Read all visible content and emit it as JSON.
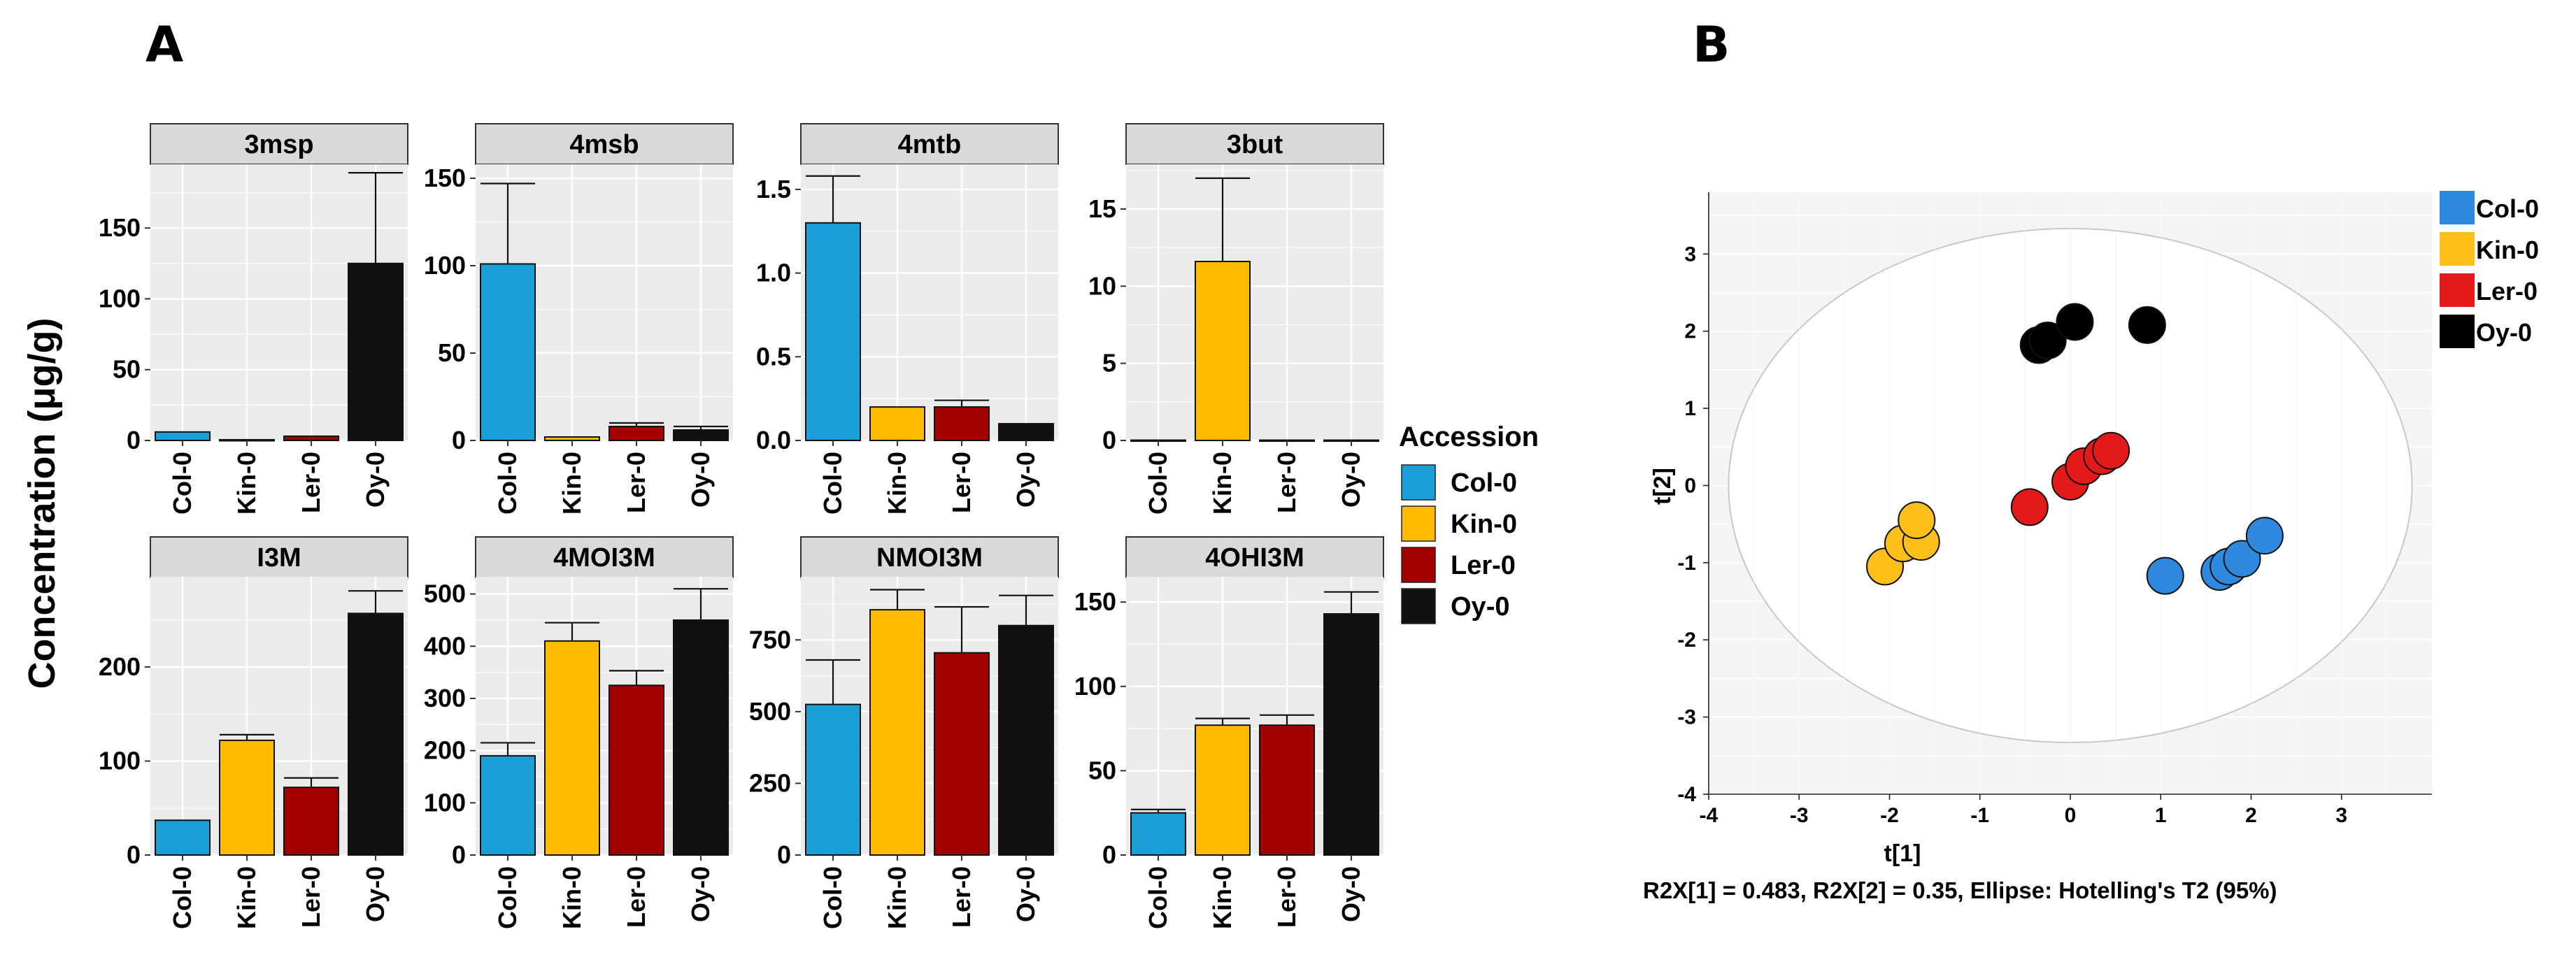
{
  "panel_a_label": "A",
  "panel_b_label": "B",
  "colors": {
    "Col-0": "#1a9fd6",
    "Kin-0": "#ffbb00",
    "Ler-0": "#a30000",
    "Oy-0": "#111111",
    "pca_Col-0": "#2e8ae0",
    "pca_Kin-0": "#ffbf1a",
    "pca_Ler-0": "#e41a1a",
    "pca_Oy-0": "#000000"
  },
  "chart_data": [
    {
      "type": "bar",
      "panel": "A",
      "title": "3msp",
      "categories": [
        "Col-0",
        "Kin-0",
        "Ler-0",
        "Oy-0"
      ],
      "values": [
        6,
        0.5,
        3,
        125
      ],
      "errors": [
        0,
        0,
        0,
        64
      ],
      "ylim": [
        0,
        195
      ],
      "yticks": [
        0,
        50,
        100,
        150
      ],
      "ylabel": "Concentration (μg/g)"
    },
    {
      "type": "bar",
      "panel": "A",
      "title": "4msb",
      "categories": [
        "Col-0",
        "Kin-0",
        "Ler-0",
        "Oy-0"
      ],
      "values": [
        101,
        2,
        8,
        6
      ],
      "errors": [
        46,
        0,
        2,
        2
      ],
      "ylim": [
        0,
        158
      ],
      "yticks": [
        0,
        50,
        100,
        150
      ],
      "ylabel": "Concentration (μg/g)"
    },
    {
      "type": "bar",
      "panel": "A",
      "title": "4mtb",
      "categories": [
        "Col-0",
        "Kin-0",
        "Ler-0",
        "Oy-0"
      ],
      "values": [
        1.3,
        0.2,
        0.2,
        0.1
      ],
      "errors": [
        0.28,
        0,
        0.04,
        0
      ],
      "ylim": [
        0,
        1.65
      ],
      "yticks": [
        0.0,
        0.5,
        1.0,
        1.5
      ],
      "ylabel": "Concentration (μg/g)"
    },
    {
      "type": "bar",
      "panel": "A",
      "title": "3but",
      "categories": [
        "Col-0",
        "Kin-0",
        "Ler-0",
        "Oy-0"
      ],
      "values": [
        0.02,
        11.6,
        0.02,
        0.02
      ],
      "errors": [
        0,
        5.4,
        0,
        0
      ],
      "ylim": [
        0,
        17.9
      ],
      "yticks": [
        0,
        5,
        10,
        15
      ],
      "ylabel": "Concentration (μg/g)"
    },
    {
      "type": "bar",
      "panel": "A",
      "title": "I3M",
      "categories": [
        "Col-0",
        "Kin-0",
        "Ler-0",
        "Oy-0"
      ],
      "values": [
        37,
        122,
        72,
        257
      ],
      "errors": [
        0,
        6,
        10,
        24
      ],
      "ylim": [
        0,
        296
      ],
      "yticks": [
        0,
        100,
        200
      ],
      "ylabel": "Concentration (μg/g)"
    },
    {
      "type": "bar",
      "panel": "A",
      "title": "4MOI3M",
      "categories": [
        "Col-0",
        "Kin-0",
        "Ler-0",
        "Oy-0"
      ],
      "values": [
        190,
        410,
        325,
        450
      ],
      "errors": [
        25,
        35,
        28,
        60
      ],
      "ylim": [
        0,
        533
      ],
      "yticks": [
        0,
        100,
        200,
        300,
        400,
        500
      ],
      "ylabel": "Concentration (μg/g)"
    },
    {
      "type": "bar",
      "panel": "A",
      "title": "NMOI3M",
      "categories": [
        "Col-0",
        "Kin-0",
        "Ler-0",
        "Oy-0"
      ],
      "values": [
        525,
        855,
        705,
        800
      ],
      "errors": [
        155,
        70,
        160,
        105
      ],
      "ylim": [
        0,
        970
      ],
      "yticks": [
        0,
        250,
        500,
        750
      ],
      "ylabel": "Concentration (μg/g)"
    },
    {
      "type": "bar",
      "panel": "A",
      "title": "4OHI3M",
      "categories": [
        "Col-0",
        "Kin-0",
        "Ler-0",
        "Oy-0"
      ],
      "values": [
        25,
        77,
        77,
        143
      ],
      "errors": [
        2,
        4,
        6,
        13
      ],
      "ylim": [
        0,
        165
      ],
      "yticks": [
        0,
        50,
        100,
        150
      ],
      "ylabel": "Concentration (μg/g)"
    },
    {
      "type": "scatter",
      "panel": "B",
      "xlabel": "t[1]",
      "ylabel": "t[2]",
      "xlim": [
        -4,
        4
      ],
      "ylim": [
        -4,
        3.8
      ],
      "xticks": [
        -4,
        -3,
        -2,
        -1,
        0,
        1,
        2,
        3
      ],
      "yticks": [
        -4,
        -3,
        -2,
        -1,
        0,
        1,
        2,
        3
      ],
      "ellipse": {
        "type": "Hotelling's T2 (95%)",
        "semi_x": 3.78,
        "semi_y": 3.33
      },
      "footnote": "R2X[1] = 0.483, R2X[2] = 0.35, Ellipse: Hotelling's T2 (95%)",
      "series": [
        {
          "name": "Col-0",
          "points": [
            [
              1.05,
              -1.17
            ],
            [
              1.65,
              -1.12
            ],
            [
              1.75,
              -1.05
            ],
            [
              1.9,
              -0.95
            ],
            [
              2.15,
              -0.65
            ]
          ]
        },
        {
          "name": "Kin-0",
          "points": [
            [
              -2.05,
              -1.05
            ],
            [
              -1.85,
              -0.75
            ],
            [
              -1.65,
              -0.73
            ],
            [
              -1.7,
              -0.45
            ]
          ]
        },
        {
          "name": "Ler-0",
          "points": [
            [
              -0.45,
              -0.28
            ],
            [
              0.0,
              0.05
            ],
            [
              0.15,
              0.25
            ],
            [
              0.35,
              0.38
            ],
            [
              0.45,
              0.45
            ]
          ]
        },
        {
          "name": "Oy-0",
          "points": [
            [
              -0.35,
              1.82
            ],
            [
              -0.25,
              1.88
            ],
            [
              0.05,
              2.12
            ],
            [
              0.85,
              2.08
            ]
          ]
        }
      ]
    }
  ],
  "legend_a": {
    "title": "Accession",
    "items": [
      "Col-0",
      "Kin-0",
      "Ler-0",
      "Oy-0"
    ]
  },
  "legend_b": {
    "items": [
      "Col-0",
      "Kin-0",
      "Ler-0",
      "Oy-0"
    ]
  }
}
